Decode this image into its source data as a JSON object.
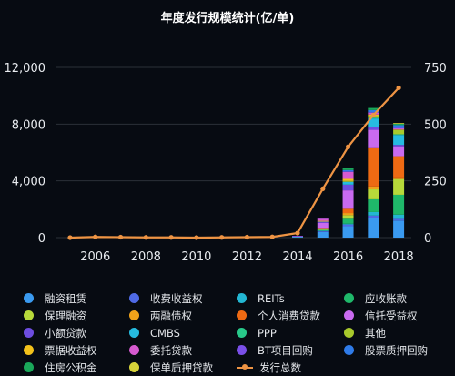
{
  "chart_data": {
    "type": "bar",
    "title": "年度发行规模统计(亿/单)",
    "x_ticks": [
      "2006",
      "2008",
      "2010",
      "2012",
      "2014",
      "2016",
      "2018"
    ],
    "left_axis": {
      "ticks": [
        "0",
        "4,000",
        "8,000",
        "12,000"
      ],
      "ylim": [
        0,
        12000
      ]
    },
    "right_axis": {
      "ticks": [
        "0",
        "250",
        "500",
        "750"
      ],
      "ylim": [
        0,
        750
      ]
    },
    "grid": true,
    "legend_placement": "bottom",
    "categories": [
      "2005",
      "2006",
      "2007",
      "2008",
      "2009",
      "2010",
      "2011",
      "2012",
      "2013",
      "2014",
      "2015",
      "2016",
      "2017",
      "2018"
    ],
    "series": [
      {
        "name": "融资租赁",
        "color": "#3a9af0",
        "values": [
          0,
          0,
          0,
          0,
          0,
          0,
          0,
          0,
          0,
          80,
          400,
          800,
          1400,
          1200
        ]
      },
      {
        "name": "收费收益权",
        "color": "#4f6ae6",
        "values": [
          0,
          0,
          0,
          0,
          0,
          0,
          0,
          0,
          0,
          5,
          80,
          120,
          150,
          120
        ]
      },
      {
        "name": "REITs",
        "color": "#23b7d3",
        "values": [
          0,
          0,
          0,
          0,
          0,
          0,
          0,
          0,
          0,
          0,
          10,
          60,
          250,
          300
        ]
      },
      {
        "name": "应收账款",
        "color": "#1fb86a",
        "values": [
          0,
          0,
          0,
          0,
          0,
          0,
          0,
          0,
          0,
          5,
          50,
          350,
          900,
          1400
        ]
      },
      {
        "name": "保理融资",
        "color": "#b7d93a",
        "values": [
          0,
          0,
          0,
          0,
          0,
          0,
          0,
          0,
          0,
          0,
          40,
          250,
          700,
          1100
        ]
      },
      {
        "name": "两融债权",
        "color": "#f0a21a",
        "values": [
          0,
          0,
          0,
          0,
          0,
          0,
          0,
          0,
          0,
          0,
          60,
          150,
          200,
          120
        ]
      },
      {
        "name": "个人消费贷款",
        "color": "#ee6a13",
        "values": [
          0,
          0,
          0,
          0,
          0,
          0,
          0,
          0,
          0,
          0,
          40,
          300,
          2700,
          1500
        ]
      },
      {
        "name": "信托受益权",
        "color": "#c96af0",
        "values": [
          0,
          0,
          0,
          0,
          0,
          0,
          0,
          0,
          0,
          10,
          350,
          1300,
          1300,
          700
        ]
      },
      {
        "name": "小额贷款",
        "color": "#6d4de0",
        "values": [
          0,
          0,
          0,
          0,
          0,
          0,
          0,
          0,
          0,
          0,
          100,
          400,
          200,
          100
        ]
      },
      {
        "name": "CMBS",
        "color": "#26bbe0",
        "values": [
          0,
          0,
          0,
          0,
          0,
          0,
          0,
          0,
          0,
          0,
          0,
          200,
          600,
          700
        ]
      },
      {
        "name": "PPP",
        "color": "#28c98a",
        "values": [
          0,
          0,
          0,
          0,
          0,
          0,
          0,
          0,
          0,
          0,
          0,
          0,
          50,
          50
        ]
      },
      {
        "name": "其他",
        "color": "#a8c92c",
        "values": [
          0,
          0,
          0,
          0,
          0,
          0,
          0,
          0,
          0,
          0,
          30,
          60,
          150,
          300
        ]
      },
      {
        "name": "票据收益权",
        "color": "#f3c21b",
        "values": [
          0,
          0,
          0,
          0,
          0,
          0,
          0,
          0,
          0,
          0,
          20,
          150,
          80,
          30
        ]
      },
      {
        "name": "委托贷款",
        "color": "#d65ad0",
        "values": [
          0,
          0,
          0,
          0,
          0,
          0,
          0,
          0,
          0,
          0,
          150,
          500,
          150,
          100
        ]
      },
      {
        "name": "BT项目回购",
        "color": "#7a4fe8",
        "values": [
          0,
          0,
          0,
          0,
          0,
          0,
          0,
          0,
          0,
          20,
          40,
          20,
          10,
          10
        ]
      },
      {
        "name": "股票质押回购",
        "color": "#2f7be8",
        "values": [
          0,
          0,
          0,
          0,
          0,
          0,
          0,
          0,
          0,
          0,
          30,
          100,
          150,
          200
        ]
      },
      {
        "name": "住房公积金",
        "color": "#1aa85a",
        "values": [
          0,
          0,
          0,
          0,
          0,
          0,
          0,
          0,
          0,
          0,
          0,
          150,
          150,
          100
        ]
      },
      {
        "name": "保单质押贷款",
        "color": "#d7d33a",
        "values": [
          0,
          0,
          0,
          0,
          0,
          0,
          0,
          0,
          0,
          0,
          0,
          0,
          0,
          50
        ]
      }
    ],
    "line": {
      "name": "发行总数",
      "color": "#ee9444",
      "axis": "right",
      "values": [
        0,
        3,
        2,
        1,
        1,
        0,
        1,
        2,
        3,
        20,
        215,
        400,
        540,
        660
      ]
    }
  }
}
